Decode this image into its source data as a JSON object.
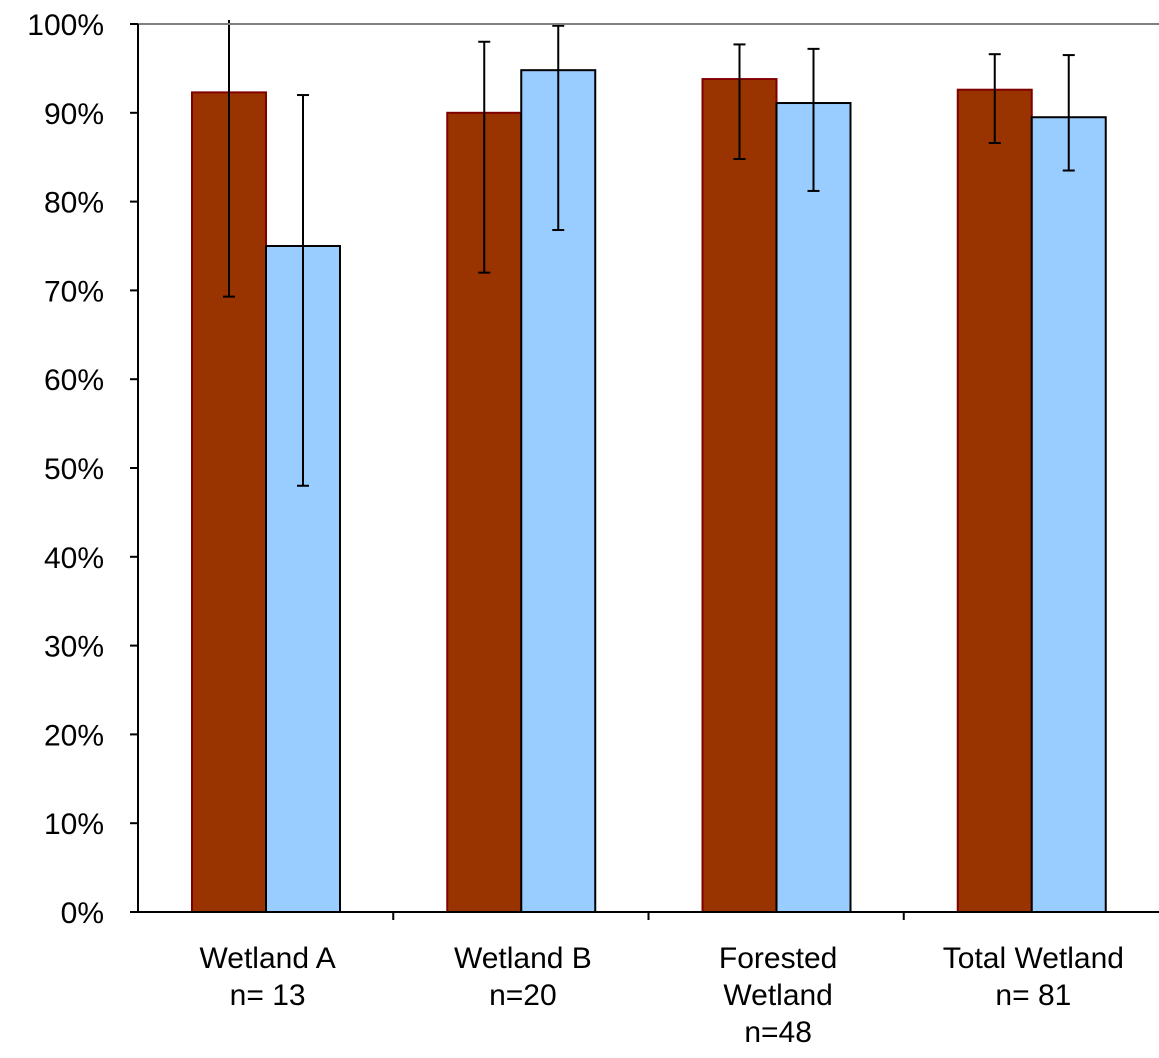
{
  "chart_data": {
    "type": "bar",
    "title": "",
    "xlabel": "",
    "ylabel": "",
    "ylim": [
      0,
      100
    ],
    "yticks": [
      "0%",
      "10%",
      "20%",
      "30%",
      "40%",
      "50%",
      "60%",
      "70%",
      "80%",
      "90%",
      "100%"
    ],
    "grid": false,
    "legend": "none",
    "categories": [
      [
        "Wetland A",
        "n= 13"
      ],
      [
        "Wetland B",
        "n=20"
      ],
      [
        "Forested",
        "Wetland",
        "n=48"
      ],
      [
        "Total Wetland",
        "n= 81"
      ]
    ],
    "series": [
      {
        "color": "#993300",
        "values": [
          92.3,
          90.0,
          93.8,
          92.6
        ],
        "error_low": [
          69.3,
          72.0,
          84.8,
          86.6
        ],
        "error_high": [
          100.5,
          98.0,
          97.7,
          96.6
        ]
      },
      {
        "color": "#99CCFF",
        "values": [
          75.0,
          94.8,
          91.1,
          89.5
        ],
        "error_low": [
          48.0,
          76.8,
          81.2,
          83.5
        ],
        "error_high": [
          92.0,
          99.8,
          97.2,
          96.5
        ]
      }
    ]
  }
}
